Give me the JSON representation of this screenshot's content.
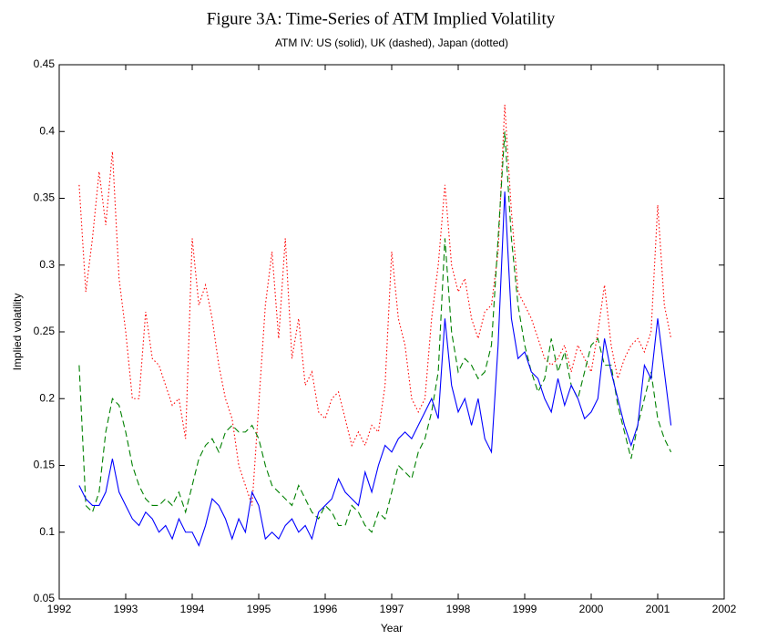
{
  "chart_data": {
    "type": "line",
    "title": "Figure 3A: Time-Series of ATM Implied Volatility",
    "subtitle": "ATM IV: US (solid), UK (dashed), Japan (dotted)",
    "x_label": "Year",
    "y_label": "Implied volatility",
    "x": [
      1992.3,
      1992.4,
      1992.5,
      1992.6,
      1992.7,
      1992.8,
      1992.9,
      1993.0,
      1993.1,
      1993.2,
      1993.3,
      1993.4,
      1993.5,
      1993.6,
      1993.7,
      1993.8,
      1993.9,
      1994.0,
      1994.1,
      1994.2,
      1994.3,
      1994.4,
      1994.5,
      1994.6,
      1994.7,
      1994.8,
      1994.9,
      1995.0,
      1995.1,
      1995.2,
      1995.3,
      1995.4,
      1995.5,
      1995.6,
      1995.7,
      1995.8,
      1995.9,
      1996.0,
      1996.1,
      1996.2,
      1996.3,
      1996.4,
      1996.5,
      1996.6,
      1996.7,
      1996.8,
      1996.9,
      1997.0,
      1997.1,
      1997.2,
      1997.3,
      1997.4,
      1997.5,
      1997.6,
      1997.7,
      1997.8,
      1997.9,
      1998.0,
      1998.1,
      1998.2,
      1998.3,
      1998.4,
      1998.5,
      1998.6,
      1998.7,
      1998.8,
      1998.9,
      1999.0,
      1999.1,
      1999.2,
      1999.3,
      1999.4,
      1999.5,
      1999.6,
      1999.7,
      1999.8,
      1999.9,
      2000.0,
      2000.1,
      2000.2,
      2000.3,
      2000.4,
      2000.5,
      2000.6,
      2000.7,
      2000.8,
      2000.9,
      2001.0,
      2001.1,
      2001.2
    ],
    "series": [
      {
        "color": "#0000ff",
        "dash": "solid",
        "values": [
          0.135,
          0.125,
          0.12,
          0.12,
          0.13,
          0.155,
          0.13,
          0.12,
          0.11,
          0.105,
          0.115,
          0.11,
          0.1,
          0.105,
          0.095,
          0.11,
          0.1,
          0.1,
          0.09,
          0.105,
          0.125,
          0.12,
          0.11,
          0.095,
          0.11,
          0.1,
          0.13,
          0.12,
          0.095,
          0.1,
          0.095,
          0.105,
          0.11,
          0.1,
          0.105,
          0.095,
          0.115,
          0.12,
          0.125,
          0.14,
          0.13,
          0.125,
          0.12,
          0.145,
          0.13,
          0.15,
          0.165,
          0.16,
          0.17,
          0.175,
          0.17,
          0.18,
          0.19,
          0.2,
          0.185,
          0.26,
          0.21,
          0.19,
          0.2,
          0.18,
          0.2,
          0.17,
          0.16,
          0.24,
          0.355,
          0.26,
          0.23,
          0.235,
          0.22,
          0.215,
          0.2,
          0.19,
          0.215,
          0.195,
          0.21,
          0.2,
          0.185,
          0.19,
          0.2,
          0.245,
          0.22,
          0.2,
          0.18,
          0.165,
          0.18,
          0.225,
          0.215,
          0.26,
          0.22,
          0.18
        ]
      },
      {
        "color": "#008000",
        "dash": "dashed",
        "values": [
          0.225,
          0.12,
          0.115,
          0.13,
          0.175,
          0.2,
          0.195,
          0.175,
          0.15,
          0.135,
          0.125,
          0.12,
          0.12,
          0.125,
          0.12,
          0.13,
          0.115,
          0.135,
          0.155,
          0.165,
          0.17,
          0.16,
          0.175,
          0.18,
          0.175,
          0.175,
          0.18,
          0.17,
          0.15,
          0.135,
          0.13,
          0.125,
          0.12,
          0.135,
          0.125,
          0.115,
          0.11,
          0.12,
          0.115,
          0.105,
          0.105,
          0.12,
          0.115,
          0.105,
          0.1,
          0.115,
          0.11,
          0.13,
          0.15,
          0.145,
          0.14,
          0.16,
          0.17,
          0.19,
          0.22,
          0.32,
          0.25,
          0.22,
          0.23,
          0.225,
          0.215,
          0.22,
          0.24,
          0.32,
          0.4,
          0.32,
          0.27,
          0.24,
          0.22,
          0.205,
          0.215,
          0.245,
          0.22,
          0.235,
          0.21,
          0.2,
          0.22,
          0.24,
          0.245,
          0.225,
          0.225,
          0.195,
          0.175,
          0.155,
          0.18,
          0.2,
          0.22,
          0.185,
          0.17,
          0.16
        ]
      },
      {
        "color": "#ff0000",
        "dash": "dotted",
        "values": [
          0.36,
          0.28,
          0.32,
          0.37,
          0.33,
          0.385,
          0.29,
          0.25,
          0.2,
          0.2,
          0.265,
          0.23,
          0.225,
          0.21,
          0.195,
          0.2,
          0.17,
          0.32,
          0.27,
          0.285,
          0.26,
          0.225,
          0.2,
          0.185,
          0.15,
          0.135,
          0.12,
          0.195,
          0.27,
          0.31,
          0.245,
          0.32,
          0.23,
          0.26,
          0.21,
          0.22,
          0.19,
          0.185,
          0.2,
          0.205,
          0.185,
          0.165,
          0.175,
          0.165,
          0.18,
          0.175,
          0.21,
          0.31,
          0.26,
          0.24,
          0.2,
          0.19,
          0.2,
          0.26,
          0.3,
          0.36,
          0.3,
          0.28,
          0.29,
          0.26,
          0.245,
          0.265,
          0.27,
          0.31,
          0.42,
          0.34,
          0.28,
          0.27,
          0.26,
          0.245,
          0.23,
          0.225,
          0.23,
          0.24,
          0.22,
          0.24,
          0.23,
          0.22,
          0.25,
          0.285,
          0.24,
          0.215,
          0.23,
          0.24,
          0.245,
          0.235,
          0.25,
          0.345,
          0.27,
          0.245
        ]
      }
    ],
    "xlim": [
      1992,
      2002
    ],
    "xticks": [
      1992,
      1993,
      1994,
      1995,
      1996,
      1997,
      1998,
      1999,
      2000,
      2001,
      2002
    ],
    "ylim": [
      0.05,
      0.45
    ],
    "yticks": [
      0.05,
      0.1,
      0.15,
      0.2,
      0.25,
      0.3,
      0.35,
      0.4,
      0.45
    ],
    "grid": false
  }
}
